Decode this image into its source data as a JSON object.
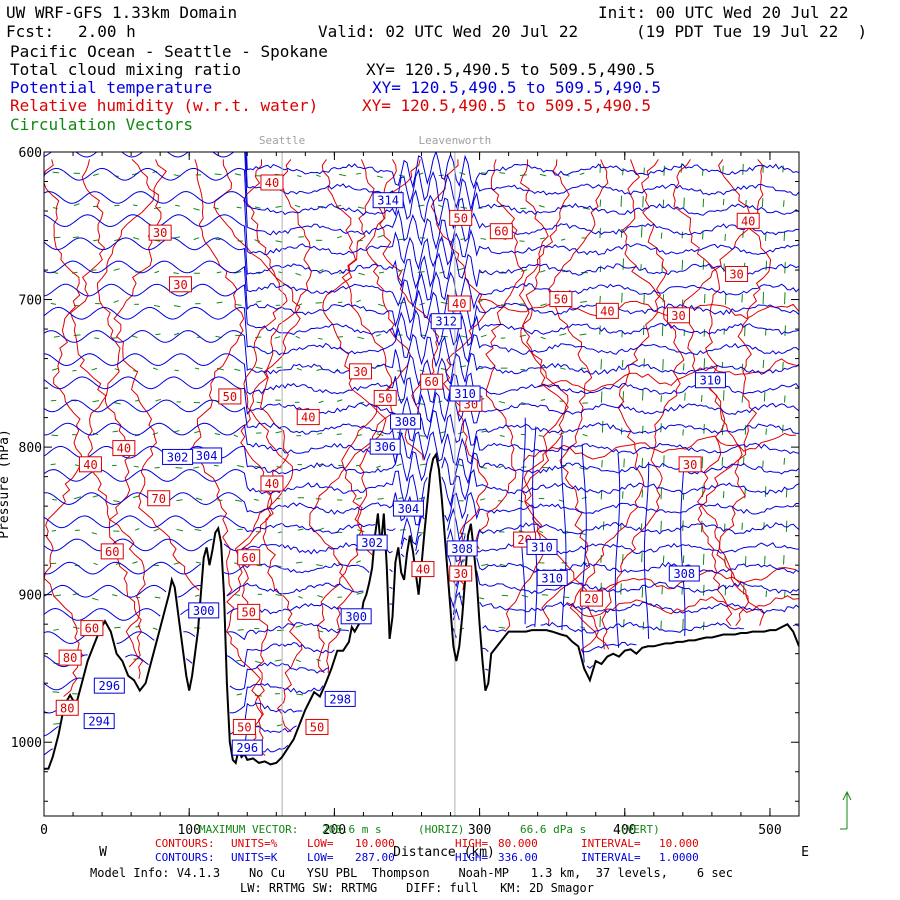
{
  "header": {
    "model": "UW WRF-GFS 1.33km Domain",
    "init": "Init: 00 UTC Wed 20 Jul 22",
    "fcst_label": "Fcst:",
    "fcst_value": "2.00 h",
    "valid": "Valid: 02 UTC Wed 20 Jul 22",
    "local": "(19 PDT Tue 19 Jul 22  )",
    "region": "Pacific Ocean - Seattle - Spokane",
    "field1": "Total cloud mixing ratio",
    "field1_xy": "XY= 120.5,490.5 to 509.5,490.5",
    "field2": "Potential temperature",
    "field2_xy": "XY= 120.5,490.5 to 509.5,490.5",
    "field3": "Relative humidity (w.r.t. water)",
    "field3_xy": "XY= 120.5,490.5 to 509.5,490.5",
    "field4": "Circulation Vectors"
  },
  "colors": {
    "cloud": "#000000",
    "theta": "#0000dd",
    "rh": "#dd0000",
    "vectors": "#118811",
    "terrain": "#000000",
    "reference_lines": "#b0b0b0"
  },
  "chart_data": {
    "type": "line",
    "x_axis": {
      "label": "Distance (km)",
      "range": [
        0,
        520
      ],
      "ticks": [
        0,
        100,
        200,
        300,
        400,
        500
      ],
      "tick_labels": [
        "0",
        "100",
        "200",
        "300",
        "400",
        "500"
      ],
      "left_end": "W",
      "right_end": "E"
    },
    "y_axis": {
      "label": "Pressure (hPa)",
      "range": [
        1050,
        600
      ],
      "ticks": [
        600,
        700,
        800,
        900,
        1000
      ],
      "tick_labels": [
        "600",
        "700",
        "800",
        "900",
        "1000"
      ]
    },
    "reference_locations": [
      {
        "name": "Seattle",
        "x": 164
      },
      {
        "name": "Leavenworth",
        "x": 283
      }
    ],
    "terrain_pressure": [
      [
        0,
        1018
      ],
      [
        3,
        1018
      ],
      [
        6,
        1010
      ],
      [
        10,
        995
      ],
      [
        14,
        975
      ],
      [
        18,
        968
      ],
      [
        22,
        975
      ],
      [
        26,
        960
      ],
      [
        30,
        945
      ],
      [
        34,
        935
      ],
      [
        38,
        925
      ],
      [
        42,
        918
      ],
      [
        46,
        925
      ],
      [
        50,
        940
      ],
      [
        54,
        945
      ],
      [
        58,
        955
      ],
      [
        62,
        958
      ],
      [
        66,
        965
      ],
      [
        70,
        960
      ],
      [
        74,
        945
      ],
      [
        78,
        930
      ],
      [
        82,
        915
      ],
      [
        86,
        900
      ],
      [
        88,
        890
      ],
      [
        90,
        895
      ],
      [
        92,
        910
      ],
      [
        94,
        925
      ],
      [
        96,
        940
      ],
      [
        98,
        955
      ],
      [
        100,
        965
      ],
      [
        102,
        955
      ],
      [
        104,
        940
      ],
      [
        106,
        925
      ],
      [
        108,
        900
      ],
      [
        110,
        875
      ],
      [
        112,
        868
      ],
      [
        114,
        880
      ],
      [
        116,
        870
      ],
      [
        118,
        858
      ],
      [
        120,
        855
      ],
      [
        122,
        865
      ],
      [
        124,
        900
      ],
      [
        126,
        960
      ],
      [
        128,
        1000
      ],
      [
        130,
        1012
      ],
      [
        132,
        1014
      ],
      [
        134,
        1005
      ],
      [
        136,
        1010
      ],
      [
        138,
        1008
      ],
      [
        140,
        1012
      ],
      [
        144,
        1011
      ],
      [
        148,
        1014
      ],
      [
        152,
        1013
      ],
      [
        156,
        1015
      ],
      [
        160,
        1014
      ],
      [
        164,
        1010
      ],
      [
        168,
        1004
      ],
      [
        172,
        998
      ],
      [
        176,
        988
      ],
      [
        180,
        978
      ],
      [
        184,
        970
      ],
      [
        186,
        966
      ],
      [
        190,
        969
      ],
      [
        194,
        960
      ],
      [
        198,
        950
      ],
      [
        202,
        938
      ],
      [
        206,
        938
      ],
      [
        210,
        932
      ],
      [
        212,
        922
      ],
      [
        214,
        925
      ],
      [
        218,
        918
      ],
      [
        220,
        905
      ],
      [
        222,
        900
      ],
      [
        224,
        892
      ],
      [
        226,
        882
      ],
      [
        228,
        860
      ],
      [
        230,
        845
      ],
      [
        232,
        868
      ],
      [
        234,
        845
      ],
      [
        236,
        880
      ],
      [
        238,
        930
      ],
      [
        240,
        915
      ],
      [
        242,
        878
      ],
      [
        244,
        868
      ],
      [
        246,
        885
      ],
      [
        248,
        890
      ],
      [
        250,
        872
      ],
      [
        252,
        860
      ],
      [
        254,
        870
      ],
      [
        256,
        885
      ],
      [
        258,
        900
      ],
      [
        260,
        880
      ],
      [
        262,
        858
      ],
      [
        264,
        838
      ],
      [
        266,
        818
      ],
      [
        268,
        808
      ],
      [
        270,
        805
      ],
      [
        272,
        815
      ],
      [
        274,
        835
      ],
      [
        276,
        860
      ],
      [
        278,
        885
      ],
      [
        280,
        910
      ],
      [
        282,
        935
      ],
      [
        284,
        945
      ],
      [
        286,
        935
      ],
      [
        288,
        915
      ],
      [
        290,
        890
      ],
      [
        292,
        860
      ],
      [
        294,
        852
      ],
      [
        296,
        870
      ],
      [
        298,
        890
      ],
      [
        300,
        920
      ],
      [
        302,
        945
      ],
      [
        304,
        965
      ],
      [
        306,
        960
      ],
      [
        308,
        940
      ],
      [
        312,
        935
      ],
      [
        316,
        930
      ],
      [
        320,
        925
      ],
      [
        326,
        925
      ],
      [
        332,
        925
      ],
      [
        336,
        924
      ],
      [
        340,
        924
      ],
      [
        346,
        924
      ],
      [
        350,
        925
      ],
      [
        356,
        927
      ],
      [
        360,
        928
      ],
      [
        364,
        932
      ],
      [
        368,
        935
      ],
      [
        372,
        950
      ],
      [
        376,
        958
      ],
      [
        380,
        945
      ],
      [
        384,
        947
      ],
      [
        388,
        942
      ],
      [
        392,
        940
      ],
      [
        396,
        942
      ],
      [
        400,
        938
      ],
      [
        404,
        937
      ],
      [
        408,
        940
      ],
      [
        412,
        936
      ],
      [
        416,
        935
      ],
      [
        420,
        935
      ],
      [
        424,
        934
      ],
      [
        428,
        933
      ],
      [
        432,
        933
      ],
      [
        436,
        932
      ],
      [
        440,
        932
      ],
      [
        444,
        931
      ],
      [
        448,
        931
      ],
      [
        452,
        930
      ],
      [
        456,
        929
      ],
      [
        460,
        929
      ],
      [
        464,
        928
      ],
      [
        468,
        927
      ],
      [
        472,
        927
      ],
      [
        476,
        927
      ],
      [
        480,
        926
      ],
      [
        484,
        926
      ],
      [
        488,
        925
      ],
      [
        492,
        925
      ],
      [
        496,
        925
      ],
      [
        500,
        924
      ],
      [
        504,
        924
      ],
      [
        508,
        922
      ],
      [
        512,
        920
      ],
      [
        516,
        925
      ],
      [
        520,
        935
      ]
    ],
    "potential_temperature_labels_K": [
      {
        "value": 314,
        "x": 237,
        "y": 633
      },
      {
        "value": 312,
        "x": 277,
        "y": 715
      },
      {
        "value": 310,
        "x": 290,
        "y": 764
      },
      {
        "value": 310,
        "x": 459,
        "y": 755
      },
      {
        "value": 308,
        "x": 249,
        "y": 783
      },
      {
        "value": 306,
        "x": 235,
        "y": 800
      },
      {
        "value": 304,
        "x": 251,
        "y": 842
      },
      {
        "value": 302,
        "x": 226,
        "y": 865
      },
      {
        "value": 300,
        "x": 110,
        "y": 911
      },
      {
        "value": 300,
        "x": 215,
        "y": 915
      },
      {
        "value": 308,
        "x": 288,
        "y": 869
      },
      {
        "value": 310,
        "x": 343,
        "y": 868
      },
      {
        "value": 310,
        "x": 350,
        "y": 889
      },
      {
        "value": 308,
        "x": 441,
        "y": 886
      },
      {
        "value": 304,
        "x": 112,
        "y": 806
      },
      {
        "value": 302,
        "x": 92,
        "y": 807
      },
      {
        "value": 298,
        "x": 204,
        "y": 971
      },
      {
        "value": 296,
        "x": 45,
        "y": 962
      },
      {
        "value": 294,
        "x": 38,
        "y": 986
      },
      {
        "value": 296,
        "x": 140,
        "y": 1004
      }
    ],
    "relative_humidity_labels_pct": [
      {
        "value": 40,
        "x": 157,
        "y": 621
      },
      {
        "value": 30,
        "x": 80,
        "y": 655
      },
      {
        "value": 30,
        "x": 94,
        "y": 690
      },
      {
        "value": 50,
        "x": 287,
        "y": 645
      },
      {
        "value": 60,
        "x": 315,
        "y": 654
      },
      {
        "value": 40,
        "x": 485,
        "y": 647
      },
      {
        "value": 30,
        "x": 477,
        "y": 683
      },
      {
        "value": 50,
        "x": 356,
        "y": 700
      },
      {
        "value": 40,
        "x": 388,
        "y": 708
      },
      {
        "value": 30,
        "x": 437,
        "y": 711
      },
      {
        "value": 40,
        "x": 286,
        "y": 703
      },
      {
        "value": 30,
        "x": 218,
        "y": 749
      },
      {
        "value": 60,
        "x": 267,
        "y": 756
      },
      {
        "value": 50,
        "x": 128,
        "y": 766
      },
      {
        "value": 50,
        "x": 235,
        "y": 767
      },
      {
        "value": 30,
        "x": 294,
        "y": 771
      },
      {
        "value": 40,
        "x": 182,
        "y": 780
      },
      {
        "value": 40,
        "x": 55,
        "y": 801
      },
      {
        "value": 40,
        "x": 32,
        "y": 812
      },
      {
        "value": 30,
        "x": 445,
        "y": 812
      },
      {
        "value": 40,
        "x": 157,
        "y": 825
      },
      {
        "value": 70,
        "x": 79,
        "y": 835
      },
      {
        "value": 20,
        "x": 331,
        "y": 863
      },
      {
        "value": 60,
        "x": 47,
        "y": 871
      },
      {
        "value": 60,
        "x": 141,
        "y": 875
      },
      {
        "value": 40,
        "x": 261,
        "y": 883
      },
      {
        "value": 30,
        "x": 287,
        "y": 886
      },
      {
        "value": 20,
        "x": 377,
        "y": 903
      },
      {
        "value": 50,
        "x": 141,
        "y": 912
      },
      {
        "value": 60,
        "x": 33,
        "y": 923
      },
      {
        "value": 80,
        "x": 18,
        "y": 943
      },
      {
        "value": 80,
        "x": 16,
        "y": 977
      },
      {
        "value": 50,
        "x": 138,
        "y": 990
      },
      {
        "value": 50,
        "x": 188,
        "y": 990
      }
    ]
  },
  "footer": {
    "max_vector_label": "MAXIMUM VECTOR:",
    "max_vector_value": "200.6 m s",
    "max_vector_unit_horiz": "(HORIZ)",
    "max_vector_vert_value": "66.6 dPa s",
    "max_vector_unit_vert": "(VERT)",
    "rh_contours_label": "CONTOURS:",
    "rh_units": "UNITS=%",
    "rh_low": "LOW=",
    "rh_low_value": "10.000",
    "rh_high": "HIGH=",
    "rh_high_value": "80.000",
    "rh_interval": "INTERVAL=",
    "rh_interval_value": "10.000",
    "theta_contours_label": "CONTOURS:",
    "theta_units": "UNITS=K",
    "theta_low": "LOW=",
    "theta_low_value": "287.00",
    "theta_high": "HIGH=",
    "theta_high_value": "336.00",
    "theta_interval": "INTERVAL=",
    "theta_interval_value": "1.0000",
    "model_info": "Model Info: V4.1.3    No Cu   YSU PBL  Thompson    Noah-MP   1.3 km,  37 levels,    6 sec",
    "model_info2": "LW: RRTMG SW: RRTMG    DIFF: full   KM: 2D Smagor"
  }
}
